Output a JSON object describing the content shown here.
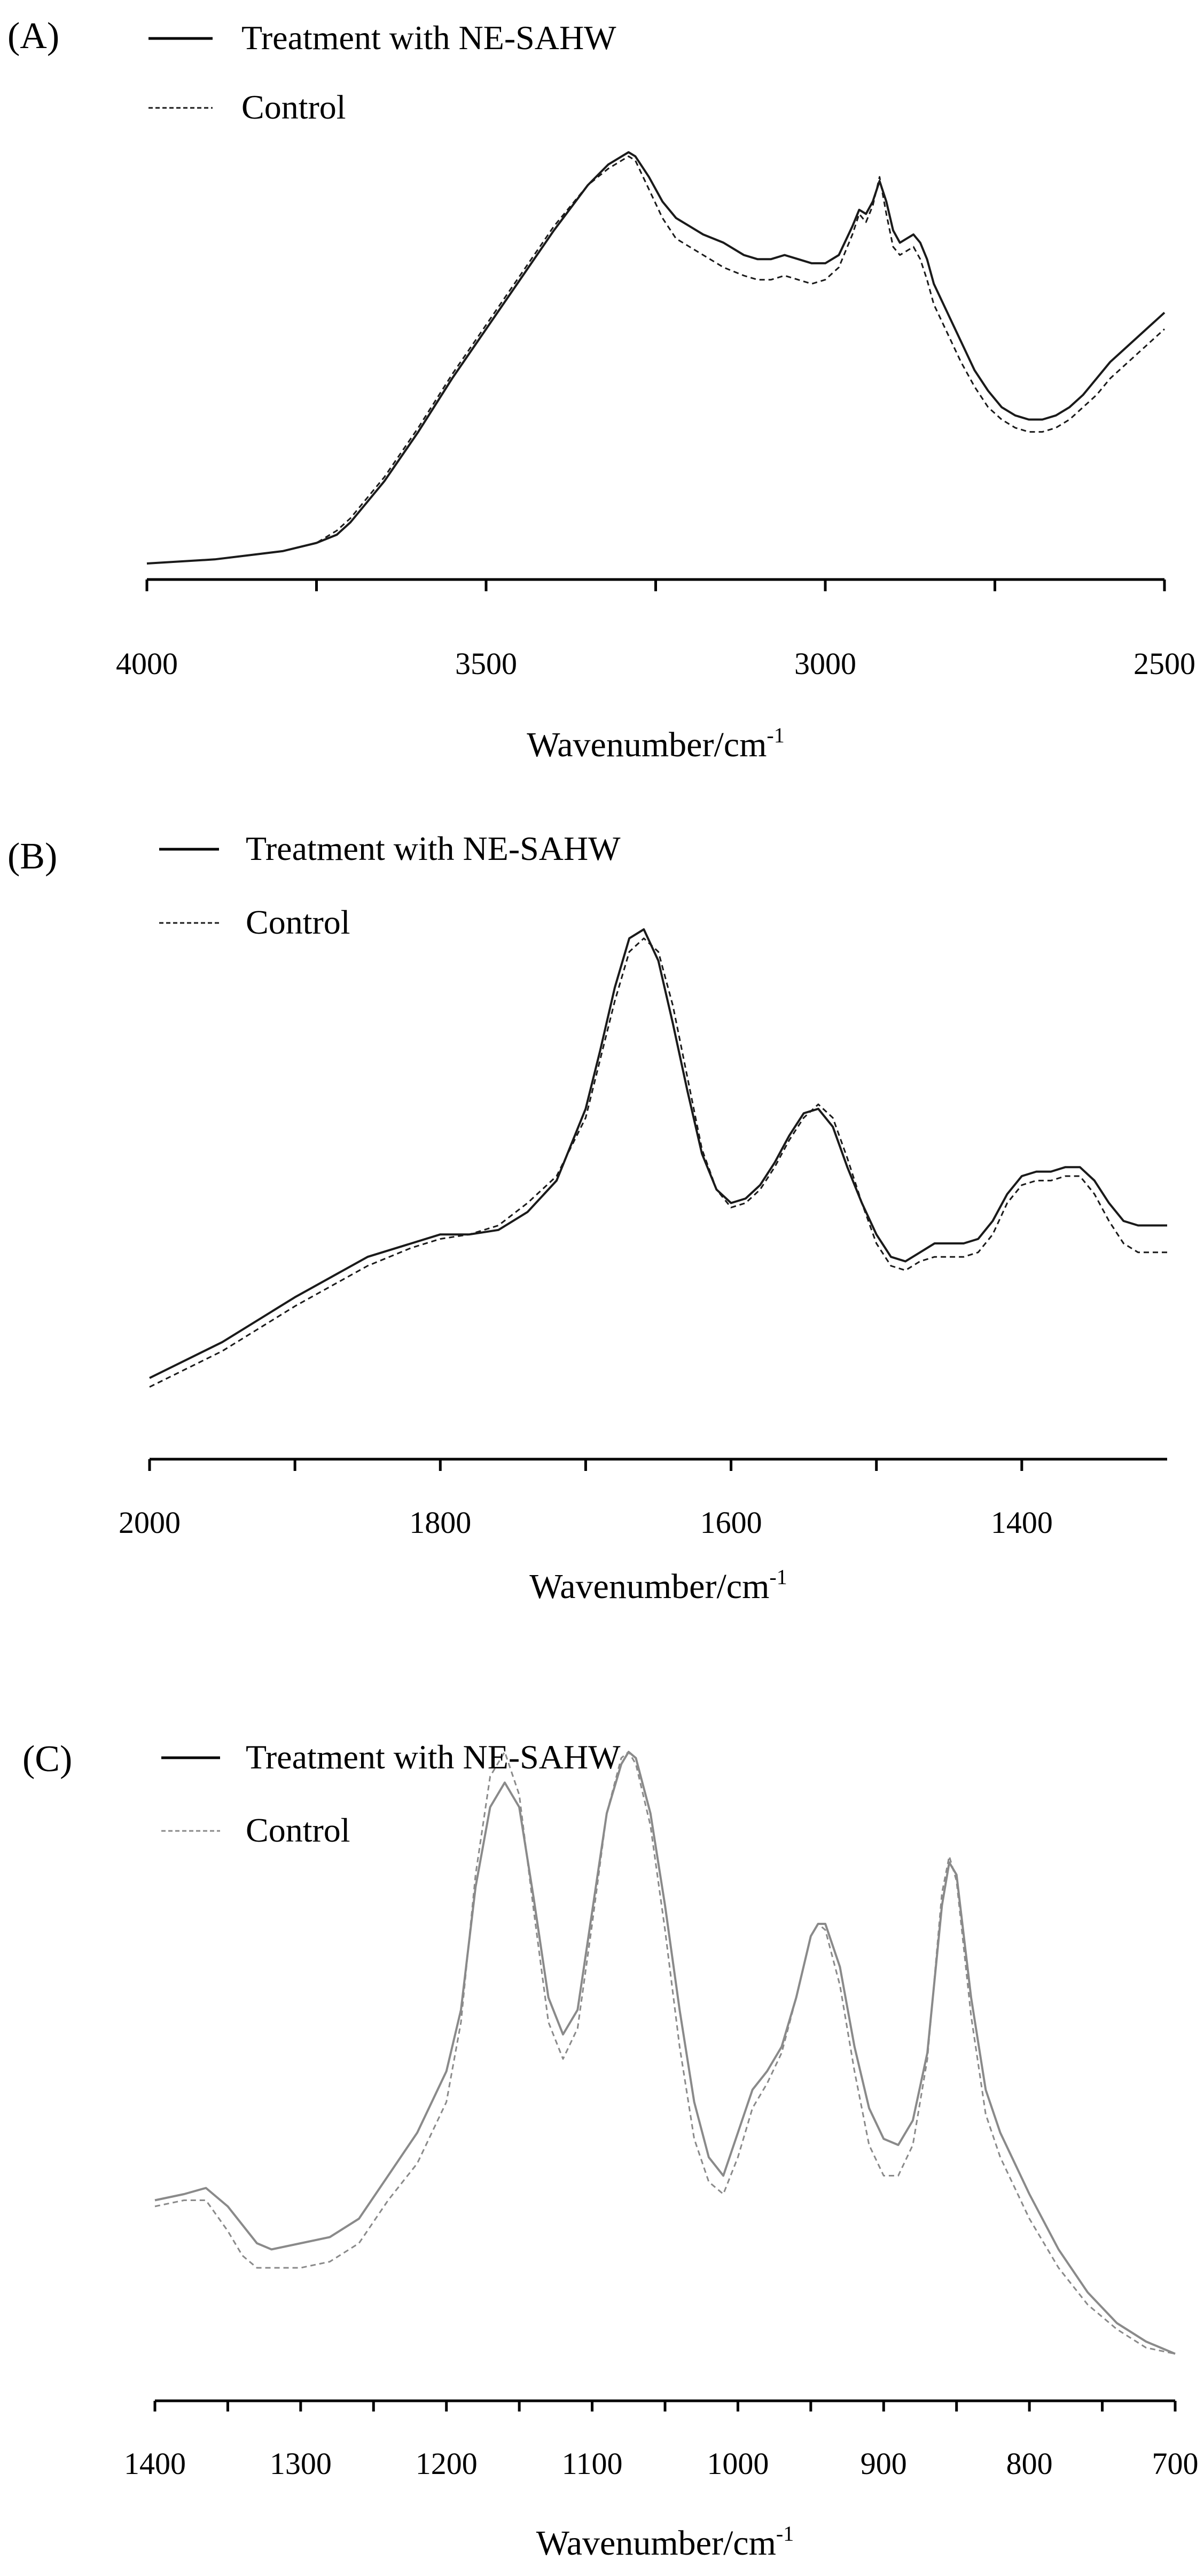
{
  "chart_data": [
    {
      "panel_label": "(A)",
      "type": "line",
      "xlabel": "Wavenumber/cm",
      "xlabel_sup": "-1",
      "xlim": [
        4000,
        2500
      ],
      "ylim": [
        0,
        1
      ],
      "ticks": [
        4000,
        3500,
        3000,
        2500
      ],
      "tick_labels": [
        "4000",
        "3500",
        "3000",
        "2500"
      ],
      "grid": false,
      "legend": {
        "placement": "top-left"
      },
      "series": [
        {
          "name": "Treatment with NE-SAHW",
          "style": "solid",
          "x": [
            4000,
            3900,
            3850,
            3800,
            3750,
            3720,
            3700,
            3650,
            3600,
            3550,
            3500,
            3450,
            3400,
            3350,
            3320,
            3300,
            3290,
            3280,
            3260,
            3240,
            3220,
            3200,
            3180,
            3150,
            3120,
            3100,
            3080,
            3060,
            3040,
            3020,
            3000,
            2980,
            2960,
            2950,
            2940,
            2930,
            2920,
            2910,
            2900,
            2890,
            2880,
            2870,
            2860,
            2850,
            2840,
            2820,
            2800,
            2780,
            2760,
            2740,
            2720,
            2700,
            2680,
            2660,
            2640,
            2620,
            2600,
            2580,
            2560,
            2540,
            2520,
            2500
          ],
          "y": [
            0.0,
            0.01,
            0.02,
            0.03,
            0.05,
            0.07,
            0.1,
            0.2,
            0.32,
            0.45,
            0.57,
            0.69,
            0.81,
            0.92,
            0.97,
            0.99,
            1.0,
            0.99,
            0.94,
            0.88,
            0.84,
            0.82,
            0.8,
            0.78,
            0.75,
            0.74,
            0.74,
            0.75,
            0.74,
            0.73,
            0.73,
            0.75,
            0.82,
            0.86,
            0.85,
            0.88,
            0.93,
            0.88,
            0.81,
            0.78,
            0.79,
            0.8,
            0.78,
            0.74,
            0.68,
            0.61,
            0.54,
            0.47,
            0.42,
            0.38,
            0.36,
            0.35,
            0.35,
            0.36,
            0.38,
            0.41,
            0.45,
            0.49,
            0.52,
            0.55,
            0.58,
            0.61
          ]
        },
        {
          "name": "Control",
          "style": "dashed",
          "x": [
            4000,
            3900,
            3850,
            3800,
            3750,
            3720,
            3700,
            3650,
            3600,
            3550,
            3500,
            3450,
            3400,
            3350,
            3320,
            3300,
            3290,
            3280,
            3260,
            3240,
            3220,
            3200,
            3180,
            3150,
            3120,
            3100,
            3080,
            3060,
            3040,
            3020,
            3000,
            2980,
            2960,
            2950,
            2940,
            2930,
            2920,
            2910,
            2900,
            2890,
            2880,
            2870,
            2860,
            2850,
            2840,
            2820,
            2800,
            2780,
            2760,
            2740,
            2720,
            2700,
            2680,
            2660,
            2640,
            2620,
            2600,
            2580,
            2560,
            2540,
            2520,
            2500
          ],
          "y": [
            0.0,
            0.01,
            0.02,
            0.03,
            0.05,
            0.08,
            0.11,
            0.21,
            0.33,
            0.46,
            0.58,
            0.7,
            0.82,
            0.92,
            0.96,
            0.98,
            0.99,
            0.98,
            0.91,
            0.84,
            0.79,
            0.77,
            0.75,
            0.72,
            0.7,
            0.69,
            0.69,
            0.7,
            0.69,
            0.68,
            0.69,
            0.72,
            0.8,
            0.85,
            0.83,
            0.87,
            0.94,
            0.85,
            0.77,
            0.75,
            0.76,
            0.77,
            0.74,
            0.69,
            0.63,
            0.56,
            0.49,
            0.43,
            0.38,
            0.35,
            0.33,
            0.32,
            0.32,
            0.33,
            0.35,
            0.38,
            0.41,
            0.45,
            0.48,
            0.51,
            0.54,
            0.57
          ]
        }
      ]
    },
    {
      "panel_label": "(B)",
      "type": "line",
      "xlabel": "Wavenumber/cm",
      "xlabel_sup": "-1",
      "xlim": [
        2000,
        1300
      ],
      "ylim": [
        0,
        1
      ],
      "ticks": [
        2000,
        1800,
        1600,
        1400
      ],
      "tick_labels": [
        "2000",
        "1800",
        "1600",
        "1400"
      ],
      "grid": false,
      "legend": {
        "placement": "top-left"
      },
      "series": [
        {
          "name": "Treatment with NE-SAHW",
          "style": "solid",
          "x": [
            2000,
            1950,
            1900,
            1850,
            1820,
            1800,
            1780,
            1760,
            1740,
            1720,
            1700,
            1690,
            1680,
            1670,
            1660,
            1650,
            1640,
            1630,
            1620,
            1610,
            1600,
            1590,
            1580,
            1570,
            1560,
            1550,
            1540,
            1530,
            1520,
            1510,
            1500,
            1490,
            1480,
            1470,
            1460,
            1450,
            1440,
            1430,
            1420,
            1410,
            1400,
            1390,
            1380,
            1370,
            1360,
            1350,
            1340,
            1330,
            1320,
            1300
          ],
          "y": [
            0.0,
            0.08,
            0.18,
            0.27,
            0.3,
            0.32,
            0.32,
            0.33,
            0.37,
            0.44,
            0.6,
            0.73,
            0.87,
            0.98,
            1.0,
            0.93,
            0.79,
            0.64,
            0.5,
            0.42,
            0.39,
            0.4,
            0.43,
            0.48,
            0.54,
            0.59,
            0.6,
            0.56,
            0.47,
            0.39,
            0.32,
            0.27,
            0.26,
            0.28,
            0.3,
            0.3,
            0.3,
            0.31,
            0.35,
            0.41,
            0.45,
            0.46,
            0.46,
            0.47,
            0.47,
            0.44,
            0.39,
            0.35,
            0.34,
            0.34
          ]
        },
        {
          "name": "Control",
          "style": "dashed",
          "x": [
            2000,
            1950,
            1900,
            1850,
            1820,
            1800,
            1780,
            1760,
            1740,
            1720,
            1700,
            1690,
            1680,
            1670,
            1660,
            1650,
            1640,
            1630,
            1620,
            1610,
            1600,
            1590,
            1580,
            1570,
            1560,
            1550,
            1540,
            1530,
            1520,
            1510,
            1500,
            1490,
            1480,
            1470,
            1460,
            1450,
            1440,
            1430,
            1420,
            1410,
            1400,
            1390,
            1380,
            1370,
            1360,
            1350,
            1340,
            1330,
            1320,
            1300
          ],
          "y": [
            -0.02,
            0.06,
            0.16,
            0.25,
            0.29,
            0.31,
            0.32,
            0.34,
            0.39,
            0.45,
            0.58,
            0.71,
            0.84,
            0.95,
            0.98,
            0.95,
            0.83,
            0.67,
            0.51,
            0.42,
            0.38,
            0.39,
            0.42,
            0.47,
            0.53,
            0.58,
            0.61,
            0.58,
            0.49,
            0.39,
            0.3,
            0.25,
            0.24,
            0.26,
            0.27,
            0.27,
            0.27,
            0.28,
            0.32,
            0.39,
            0.43,
            0.44,
            0.44,
            0.45,
            0.45,
            0.41,
            0.35,
            0.3,
            0.28,
            0.28
          ]
        }
      ]
    },
    {
      "panel_label": "(C)",
      "type": "line",
      "xlabel": "Wavenumber/cm",
      "xlabel_sup": "-1",
      "xlim": [
        1400,
        700
      ],
      "ylim": [
        0,
        1
      ],
      "ticks": [
        1400,
        1300,
        1200,
        1100,
        1000,
        900,
        800,
        700
      ],
      "tick_labels": [
        "1400",
        "1300",
        "1200",
        "1100",
        "1000",
        "900",
        "800",
        "700"
      ],
      "grid": false,
      "legend": {
        "placement": "top-left"
      },
      "series": [
        {
          "name": "Treatment with NE-SAHW",
          "style": "solid",
          "x": [
            1400,
            1380,
            1365,
            1350,
            1340,
            1330,
            1320,
            1300,
            1280,
            1260,
            1240,
            1220,
            1200,
            1190,
            1180,
            1170,
            1160,
            1150,
            1140,
            1130,
            1120,
            1110,
            1100,
            1090,
            1080,
            1075,
            1070,
            1060,
            1050,
            1040,
            1030,
            1020,
            1010,
            1000,
            990,
            980,
            970,
            960,
            950,
            945,
            940,
            930,
            920,
            910,
            900,
            890,
            880,
            870,
            860,
            855,
            850,
            840,
            830,
            820,
            800,
            780,
            760,
            740,
            720,
            700
          ],
          "y": [
            0.27,
            0.28,
            0.29,
            0.26,
            0.23,
            0.2,
            0.19,
            0.2,
            0.21,
            0.24,
            0.31,
            0.38,
            0.48,
            0.58,
            0.78,
            0.91,
            0.95,
            0.91,
            0.76,
            0.6,
            0.54,
            0.58,
            0.74,
            0.9,
            0.98,
            1.0,
            0.99,
            0.9,
            0.75,
            0.58,
            0.43,
            0.34,
            0.31,
            0.38,
            0.45,
            0.48,
            0.52,
            0.6,
            0.7,
            0.72,
            0.72,
            0.65,
            0.52,
            0.42,
            0.37,
            0.36,
            0.4,
            0.51,
            0.75,
            0.82,
            0.8,
            0.6,
            0.45,
            0.38,
            0.28,
            0.19,
            0.12,
            0.07,
            0.04,
            0.02
          ]
        },
        {
          "name": "Control",
          "style": "dashed",
          "x": [
            1400,
            1380,
            1365,
            1350,
            1340,
            1330,
            1320,
            1300,
            1280,
            1260,
            1240,
            1220,
            1200,
            1190,
            1180,
            1170,
            1160,
            1150,
            1140,
            1130,
            1120,
            1110,
            1100,
            1090,
            1080,
            1075,
            1070,
            1060,
            1050,
            1040,
            1030,
            1020,
            1010,
            1000,
            990,
            980,
            970,
            960,
            950,
            945,
            940,
            930,
            920,
            910,
            900,
            890,
            880,
            870,
            860,
            855,
            850,
            840,
            830,
            820,
            800,
            780,
            760,
            740,
            720,
            700
          ],
          "y": [
            0.26,
            0.27,
            0.27,
            0.22,
            0.18,
            0.16,
            0.16,
            0.16,
            0.17,
            0.2,
            0.27,
            0.33,
            0.43,
            0.56,
            0.8,
            0.96,
            1.0,
            0.93,
            0.74,
            0.56,
            0.5,
            0.55,
            0.72,
            0.9,
            0.99,
            1.0,
            0.98,
            0.88,
            0.71,
            0.52,
            0.37,
            0.3,
            0.28,
            0.34,
            0.42,
            0.46,
            0.51,
            0.6,
            0.7,
            0.72,
            0.71,
            0.62,
            0.48,
            0.36,
            0.31,
            0.31,
            0.36,
            0.5,
            0.77,
            0.83,
            0.79,
            0.57,
            0.41,
            0.34,
            0.24,
            0.16,
            0.1,
            0.06,
            0.03,
            0.02
          ]
        }
      ]
    }
  ]
}
